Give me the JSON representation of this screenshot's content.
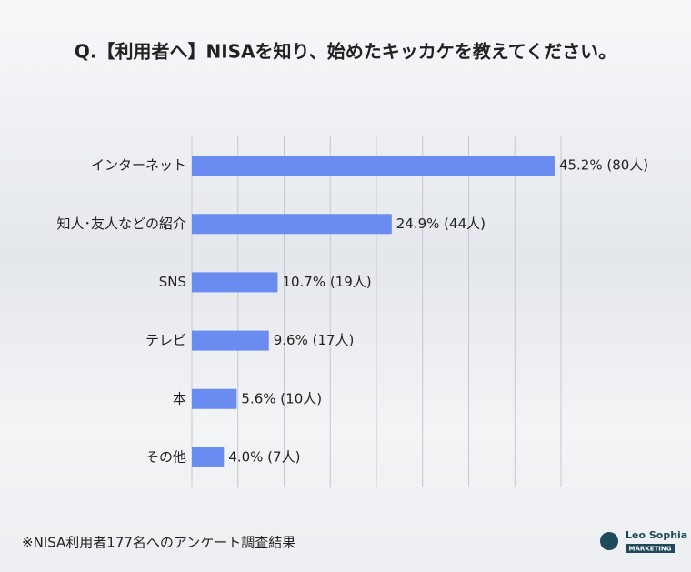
{
  "chart_data": {
    "type": "bar",
    "orientation": "horizontal",
    "title": "Q.【利用者へ】NISAを知り、始めたキッカケを教えてください。",
    "categories": [
      "インターネット",
      "知人･友人などの紹介",
      "SNS",
      "テレビ",
      "本",
      "その他"
    ],
    "values": [
      45.2,
      24.9,
      10.7,
      9.6,
      5.6,
      4.0
    ],
    "value_labels": [
      "45.2% (80人)",
      "24.9% (44人)",
      "10.7% (19人)",
      "9.6% (17人)",
      "5.6% (10人)",
      "4.0% (7人)"
    ],
    "color": "#6a8bef",
    "xlim": [
      0,
      46
    ],
    "xticks": [
      0,
      5.75,
      11.5,
      17.25,
      23,
      28.75,
      34.5,
      40.25,
      46
    ],
    "grid": true,
    "note": "※NISA利用者177名へのアンケート調査結果",
    "logo": {
      "name": "Leo Sophia",
      "tagline": "MARKETING"
    }
  }
}
